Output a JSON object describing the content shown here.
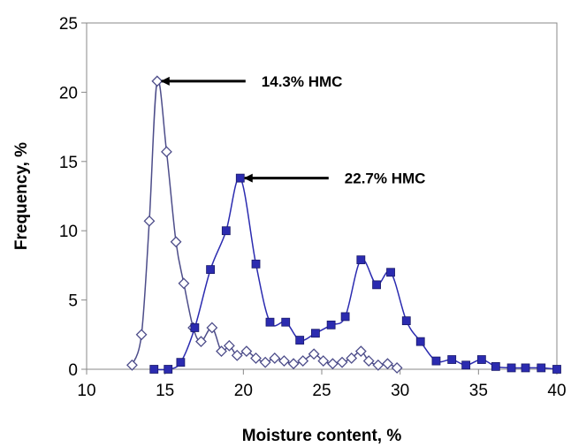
{
  "chart_data": {
    "type": "line",
    "xlabel": "Moisture content, %",
    "ylabel": "Frequency, %",
    "xlim": [
      10,
      40
    ],
    "ylim": [
      0,
      25
    ],
    "xticks": [
      "10",
      "15",
      "20",
      "25",
      "30",
      "35",
      "40"
    ],
    "yticks": [
      "0",
      "5",
      "10",
      "15",
      "20",
      "25"
    ],
    "grid": false,
    "legend": "none",
    "series": [
      {
        "marker": "diamond-open",
        "color": "#4d4d8a",
        "points": [
          [
            12.9,
            0.3
          ],
          [
            13.5,
            2.5
          ],
          [
            14.0,
            10.7
          ],
          [
            14.5,
            20.8
          ],
          [
            15.1,
            15.7
          ],
          [
            15.7,
            9.2
          ],
          [
            16.2,
            6.2
          ],
          [
            16.8,
            3.0
          ],
          [
            17.3,
            2.0
          ],
          [
            18.0,
            3.0
          ],
          [
            18.6,
            1.3
          ],
          [
            19.1,
            1.7
          ],
          [
            19.6,
            1.0
          ],
          [
            20.2,
            1.3
          ],
          [
            20.8,
            0.8
          ],
          [
            21.4,
            0.5
          ],
          [
            22.0,
            0.8
          ],
          [
            22.6,
            0.6
          ],
          [
            23.2,
            0.4
          ],
          [
            23.8,
            0.6
          ],
          [
            24.5,
            1.1
          ],
          [
            25.1,
            0.6
          ],
          [
            25.7,
            0.4
          ],
          [
            26.3,
            0.5
          ],
          [
            26.9,
            0.8
          ],
          [
            27.5,
            1.3
          ],
          [
            28.0,
            0.6
          ],
          [
            28.6,
            0.3
          ],
          [
            29.2,
            0.4
          ],
          [
            29.8,
            0.1
          ]
        ]
      },
      {
        "marker": "square-filled",
        "color": "#2b2bb0",
        "points": [
          [
            14.3,
            0.0
          ],
          [
            15.2,
            0.0
          ],
          [
            16.0,
            0.5
          ],
          [
            16.9,
            3.0
          ],
          [
            17.9,
            7.2
          ],
          [
            18.9,
            10.0
          ],
          [
            19.8,
            13.8
          ],
          [
            20.8,
            7.6
          ],
          [
            21.7,
            3.4
          ],
          [
            22.7,
            3.4
          ],
          [
            23.6,
            2.1
          ],
          [
            24.6,
            2.6
          ],
          [
            25.6,
            3.2
          ],
          [
            26.5,
            3.8
          ],
          [
            27.5,
            7.9
          ],
          [
            28.5,
            6.1
          ],
          [
            29.4,
            7.0
          ],
          [
            30.4,
            3.5
          ],
          [
            31.3,
            2.0
          ],
          [
            32.3,
            0.6
          ],
          [
            33.3,
            0.7
          ],
          [
            34.2,
            0.3
          ],
          [
            35.2,
            0.7
          ],
          [
            36.1,
            0.2
          ],
          [
            37.1,
            0.1
          ],
          [
            38.0,
            0.1
          ],
          [
            39.0,
            0.1
          ],
          [
            40.0,
            0.0
          ]
        ]
      }
    ],
    "annotations": [
      {
        "text": "14.3% HMC",
        "x": 14.5,
        "y": 20.8
      },
      {
        "text": "22.7% HMC",
        "x": 19.8,
        "y": 13.8
      }
    ]
  }
}
